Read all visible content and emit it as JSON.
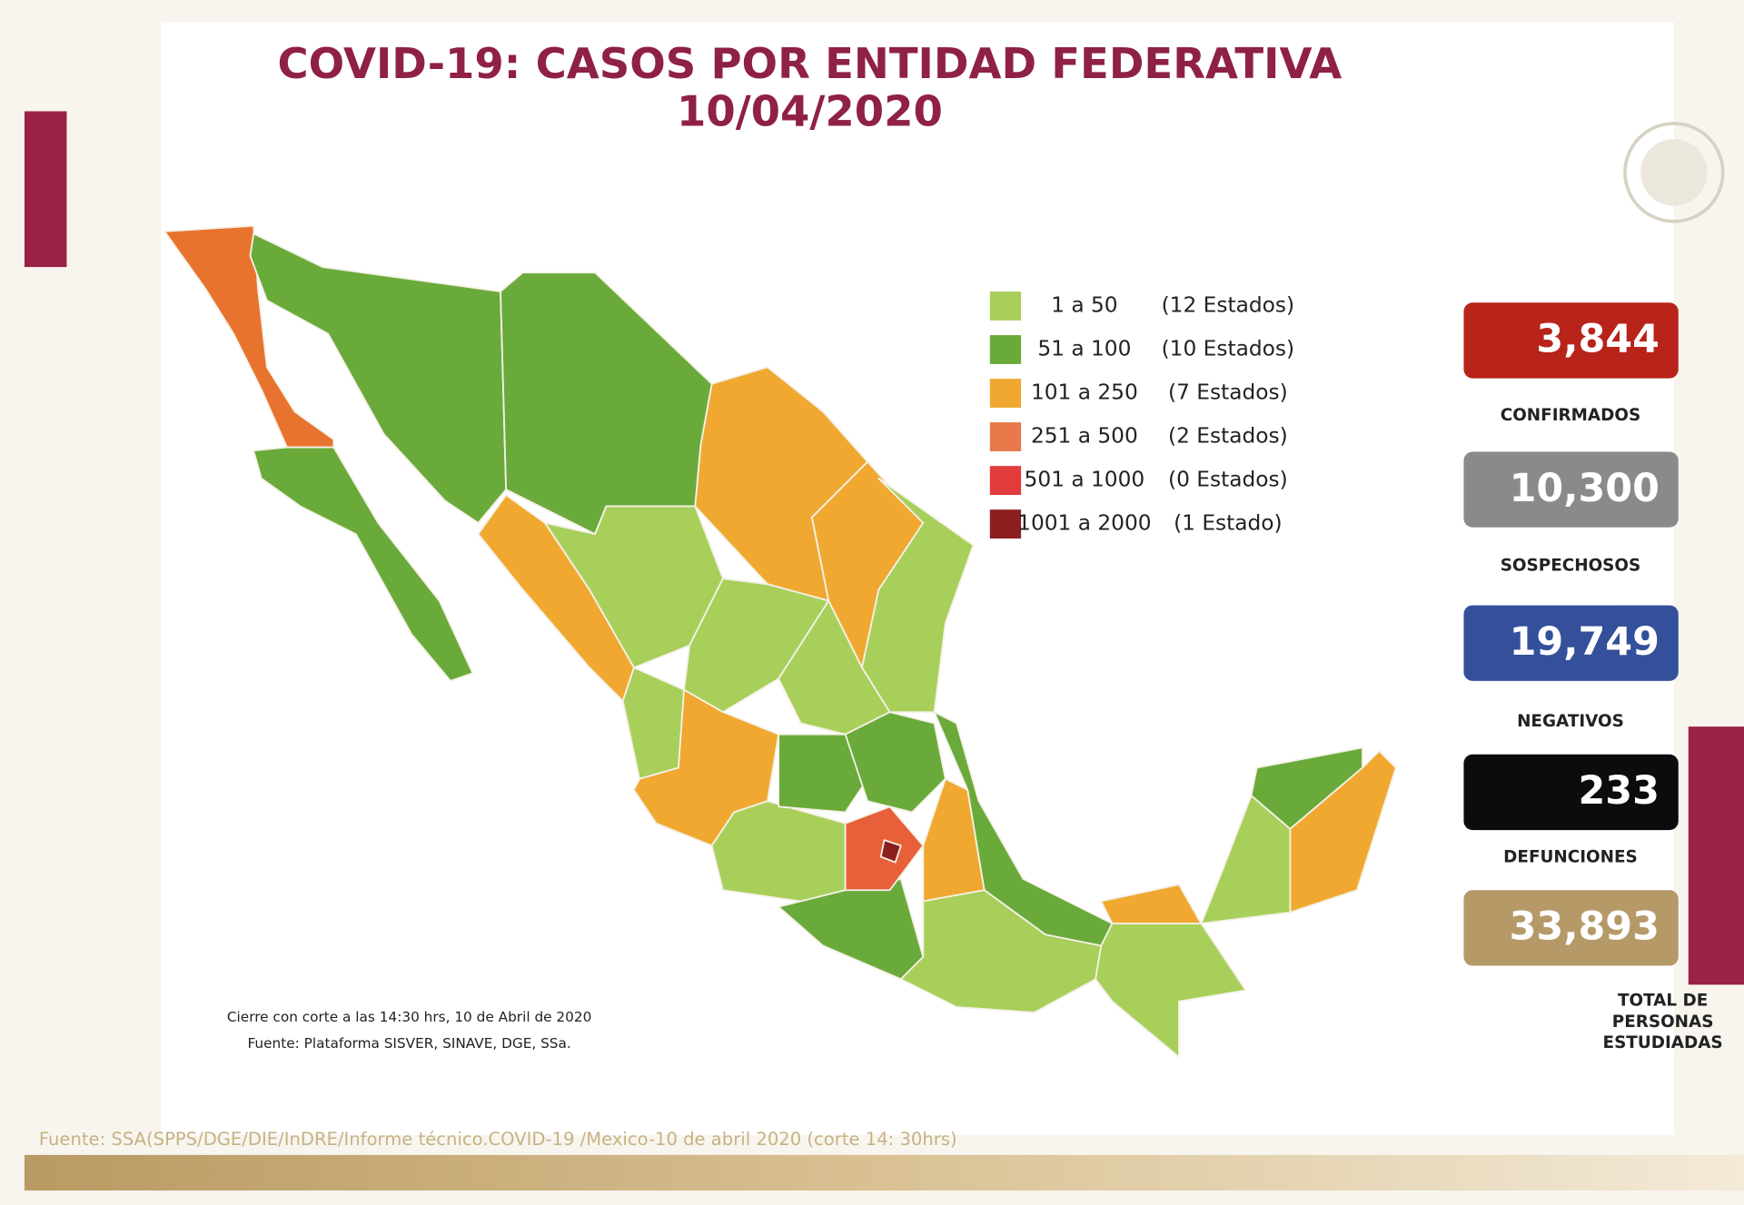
{
  "header": {
    "title": "COVID-19: CASOS POR ENTIDAD FEDERATIVA",
    "date": "10/04/2020"
  },
  "legend": [
    {
      "range": "1 a 50",
      "count": "(12 Estados)"
    },
    {
      "range": "51 a 100",
      "count": "(10 Estados)"
    },
    {
      "range": "101 a 250",
      "count": "(7 Estados)"
    },
    {
      "range": "251 a 500",
      "count": "(2 Estados)"
    },
    {
      "range": "501 a 1000",
      "count": "(0 Estados)"
    },
    {
      "range": "1001 a 2000",
      "count": "(1 Estado)"
    }
  ],
  "stats": [
    {
      "value": "3,844",
      "label": [
        "CONFIRMADOS"
      ]
    },
    {
      "value": "10,300",
      "label": [
        "SOSPECHOSOS"
      ]
    },
    {
      "value": "19,749",
      "label": [
        "NEGATIVOS"
      ]
    },
    {
      "value": "233",
      "label": [
        "DEFUNCIONES"
      ]
    },
    {
      "value": "33,893",
      "label": [
        "TOTAL DE",
        "PERSONAS",
        "ESTUDIADAS"
      ]
    }
  ],
  "notes": [
    "Cierre con corte a las 14:30 hrs, 10 de Abril de 2020",
    "Fuente: Plataforma SISVER, SINAVE, DGE, SSa."
  ],
  "source": "Fuente: SSA(SPPS/DGE/DIE/InDRE/Informe técnico.COVID-19 /Mexico-10 de abril 2020 (corte 14: 30hrs)"
}
